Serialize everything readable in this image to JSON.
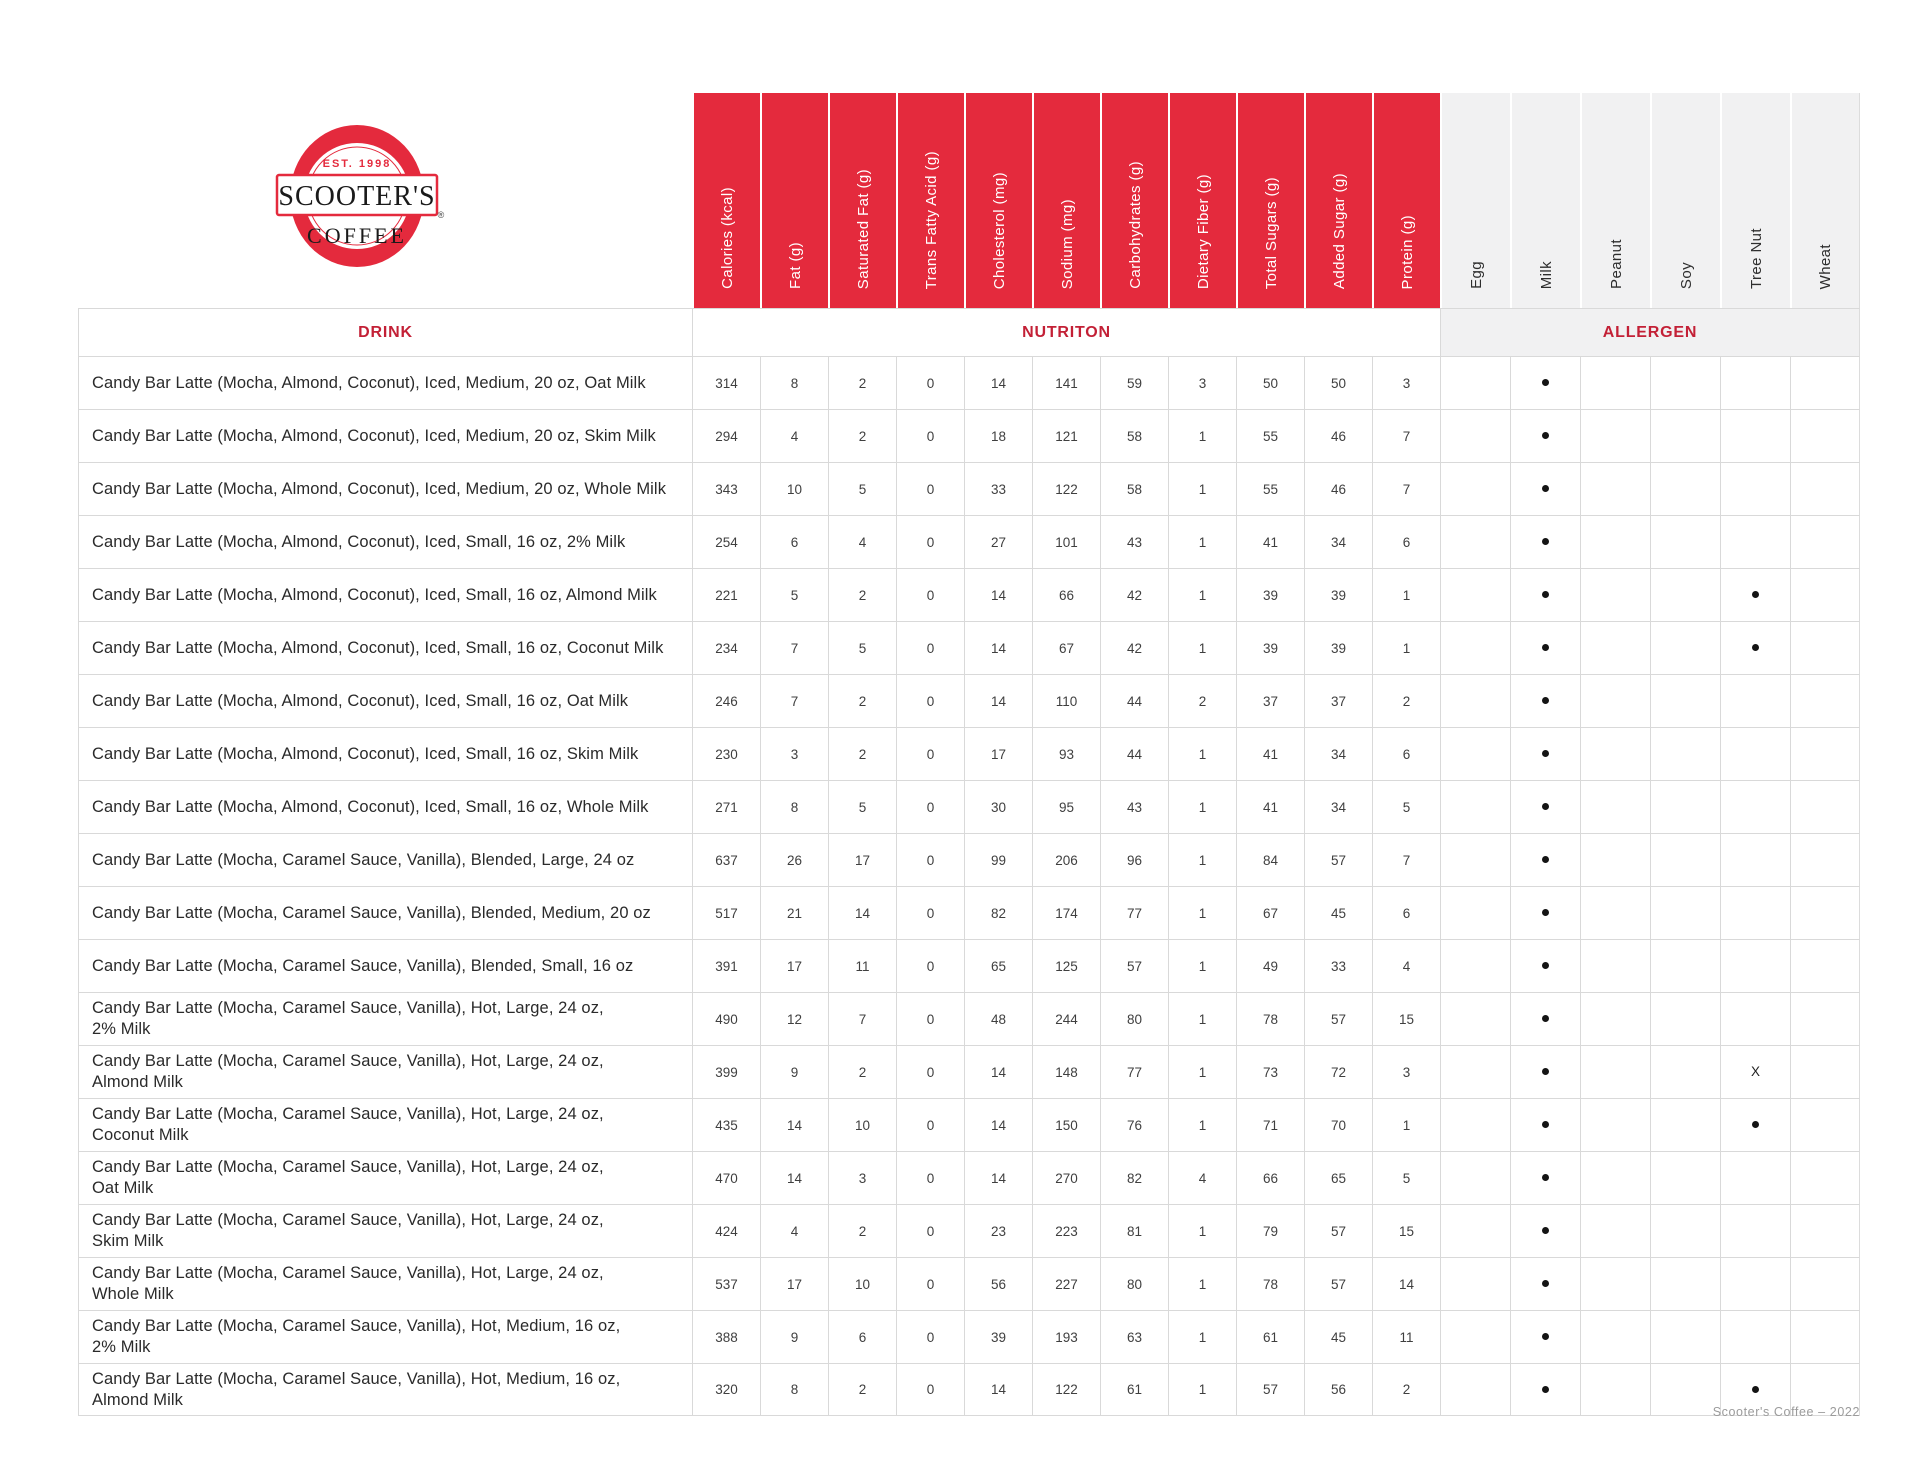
{
  "logo": {
    "est": "EST. 1998",
    "name": "SCOOTER'S",
    "coffee": "COFFEE",
    "registered": "®"
  },
  "sections": {
    "drink": "DRINK",
    "nutrition": "NUTRITON",
    "allergen": "ALLERGEN"
  },
  "nutrition_columns": [
    "Calories (kcal)",
    "Fat (g)",
    "Saturated Fat (g)",
    "Trans Fatty Acid (g)",
    "Cholesterol (mg)",
    "Sodium (mg)",
    "Carbohydrates (g)",
    "Dietary Fiber (g)",
    "Total Sugars (g)",
    "Added Sugar (g)",
    "Protein (g)"
  ],
  "allergen_columns": [
    "Egg",
    "Milk",
    "Peanut",
    "Soy",
    "Tree Nut",
    "Wheat"
  ],
  "rows": [
    {
      "line1": "Candy Bar Latte (Mocha, Almond, Coconut), Iced, Medium, 20 oz, Oat Milk",
      "line2": "",
      "values": [
        314,
        8,
        2,
        0,
        14,
        141,
        59,
        3,
        50,
        50,
        3
      ],
      "allergens": [
        "",
        "•",
        "",
        "",
        "",
        ""
      ]
    },
    {
      "line1": "Candy Bar Latte (Mocha, Almond, Coconut), Iced, Medium, 20 oz, Skim Milk",
      "line2": "",
      "values": [
        294,
        4,
        2,
        0,
        18,
        121,
        58,
        1,
        55,
        46,
        7
      ],
      "allergens": [
        "",
        "•",
        "",
        "",
        "",
        ""
      ]
    },
    {
      "line1": "Candy Bar Latte (Mocha, Almond, Coconut), Iced, Medium, 20 oz, Whole Milk",
      "line2": "",
      "values": [
        343,
        10,
        5,
        0,
        33,
        122,
        58,
        1,
        55,
        46,
        7
      ],
      "allergens": [
        "",
        "•",
        "",
        "",
        "",
        ""
      ]
    },
    {
      "line1": "Candy Bar Latte (Mocha, Almond, Coconut), Iced, Small, 16 oz, 2% Milk",
      "line2": "",
      "values": [
        254,
        6,
        4,
        0,
        27,
        101,
        43,
        1,
        41,
        34,
        6
      ],
      "allergens": [
        "",
        "•",
        "",
        "",
        "",
        ""
      ]
    },
    {
      "line1": "Candy Bar Latte (Mocha, Almond, Coconut), Iced, Small, 16 oz, Almond Milk",
      "line2": "",
      "values": [
        221,
        5,
        2,
        0,
        14,
        66,
        42,
        1,
        39,
        39,
        1
      ],
      "allergens": [
        "",
        "•",
        "",
        "",
        "•",
        ""
      ]
    },
    {
      "line1": "Candy Bar Latte (Mocha, Almond, Coconut), Iced, Small, 16 oz, Coconut Milk",
      "line2": "",
      "values": [
        234,
        7,
        5,
        0,
        14,
        67,
        42,
        1,
        39,
        39,
        1
      ],
      "allergens": [
        "",
        "•",
        "",
        "",
        "•",
        ""
      ]
    },
    {
      "line1": "Candy Bar Latte (Mocha, Almond, Coconut), Iced, Small, 16 oz, Oat Milk",
      "line2": "",
      "values": [
        246,
        7,
        2,
        0,
        14,
        110,
        44,
        2,
        37,
        37,
        2
      ],
      "allergens": [
        "",
        "•",
        "",
        "",
        "",
        ""
      ]
    },
    {
      "line1": "Candy Bar Latte (Mocha, Almond, Coconut), Iced, Small, 16 oz, Skim Milk",
      "line2": "",
      "values": [
        230,
        3,
        2,
        0,
        17,
        93,
        44,
        1,
        41,
        34,
        6
      ],
      "allergens": [
        "",
        "•",
        "",
        "",
        "",
        ""
      ]
    },
    {
      "line1": "Candy Bar Latte (Mocha, Almond, Coconut), Iced, Small, 16 oz, Whole Milk",
      "line2": "",
      "values": [
        271,
        8,
        5,
        0,
        30,
        95,
        43,
        1,
        41,
        34,
        5
      ],
      "allergens": [
        "",
        "•",
        "",
        "",
        "",
        ""
      ]
    },
    {
      "line1": "Candy Bar Latte (Mocha, Caramel Sauce, Vanilla), Blended, Large, 24 oz",
      "line2": "",
      "values": [
        637,
        26,
        17,
        0,
        99,
        206,
        96,
        1,
        84,
        57,
        7
      ],
      "allergens": [
        "",
        "•",
        "",
        "",
        "",
        ""
      ]
    },
    {
      "line1": "Candy Bar Latte (Mocha, Caramel Sauce, Vanilla), Blended, Medium, 20 oz",
      "line2": "",
      "values": [
        517,
        21,
        14,
        0,
        82,
        174,
        77,
        1,
        67,
        45,
        6
      ],
      "allergens": [
        "",
        "•",
        "",
        "",
        "",
        ""
      ]
    },
    {
      "line1": "Candy Bar Latte (Mocha, Caramel Sauce, Vanilla), Blended, Small, 16 oz",
      "line2": "",
      "values": [
        391,
        17,
        11,
        0,
        65,
        125,
        57,
        1,
        49,
        33,
        4
      ],
      "allergens": [
        "",
        "•",
        "",
        "",
        "",
        ""
      ]
    },
    {
      "line1": "Candy Bar Latte (Mocha, Caramel Sauce, Vanilla), Hot, Large, 24 oz,",
      "line2": "2% Milk",
      "values": [
        490,
        12,
        7,
        0,
        48,
        244,
        80,
        1,
        78,
        57,
        15
      ],
      "allergens": [
        "",
        "•",
        "",
        "",
        "",
        ""
      ]
    },
    {
      "line1": "Candy Bar Latte (Mocha, Caramel Sauce, Vanilla), Hot, Large, 24 oz,",
      "line2": "Almond Milk",
      "values": [
        399,
        9,
        2,
        0,
        14,
        148,
        77,
        1,
        73,
        72,
        3
      ],
      "allergens": [
        "",
        "•",
        "",
        "",
        "X",
        ""
      ]
    },
    {
      "line1": "Candy Bar Latte (Mocha, Caramel Sauce, Vanilla), Hot, Large, 24 oz,",
      "line2": "Coconut Milk",
      "values": [
        435,
        14,
        10,
        0,
        14,
        150,
        76,
        1,
        71,
        70,
        1
      ],
      "allergens": [
        "",
        "•",
        "",
        "",
        "•",
        ""
      ]
    },
    {
      "line1": "Candy Bar Latte (Mocha, Caramel Sauce, Vanilla), Hot, Large, 24 oz,",
      "line2": "Oat Milk",
      "values": [
        470,
        14,
        3,
        0,
        14,
        270,
        82,
        4,
        66,
        65,
        5
      ],
      "allergens": [
        "",
        "•",
        "",
        "",
        "",
        ""
      ]
    },
    {
      "line1": "Candy Bar Latte (Mocha, Caramel Sauce, Vanilla), Hot, Large, 24 oz,",
      "line2": "Skim Milk",
      "values": [
        424,
        4,
        2,
        0,
        23,
        223,
        81,
        1,
        79,
        57,
        15
      ],
      "allergens": [
        "",
        "•",
        "",
        "",
        "",
        ""
      ]
    },
    {
      "line1": "Candy Bar Latte (Mocha, Caramel Sauce, Vanilla), Hot, Large, 24 oz,",
      "line2": "Whole Milk",
      "values": [
        537,
        17,
        10,
        0,
        56,
        227,
        80,
        1,
        78,
        57,
        14
      ],
      "allergens": [
        "",
        "•",
        "",
        "",
        "",
        ""
      ]
    },
    {
      "line1": "Candy Bar Latte (Mocha, Caramel Sauce, Vanilla), Hot, Medium, 16 oz,",
      "line2": "2% Milk",
      "values": [
        388,
        9,
        6,
        0,
        39,
        193,
        63,
        1,
        61,
        45,
        11
      ],
      "allergens": [
        "",
        "•",
        "",
        "",
        "",
        ""
      ]
    },
    {
      "line1": "Candy Bar Latte (Mocha, Caramel Sauce, Vanilla), Hot, Medium, 16 oz,",
      "line2": "Almond Milk",
      "values": [
        320,
        8,
        2,
        0,
        14,
        122,
        61,
        1,
        57,
        56,
        2
      ],
      "allergens": [
        "",
        "•",
        "",
        "",
        "•",
        ""
      ]
    }
  ],
  "footer": "Scooter's Coffee – 2022",
  "colors": {
    "brand_red": "#e42a3d",
    "section_text_red": "#c32036",
    "allergen_bg": "#f1f1f2",
    "gridline": "#d9d9d9"
  }
}
